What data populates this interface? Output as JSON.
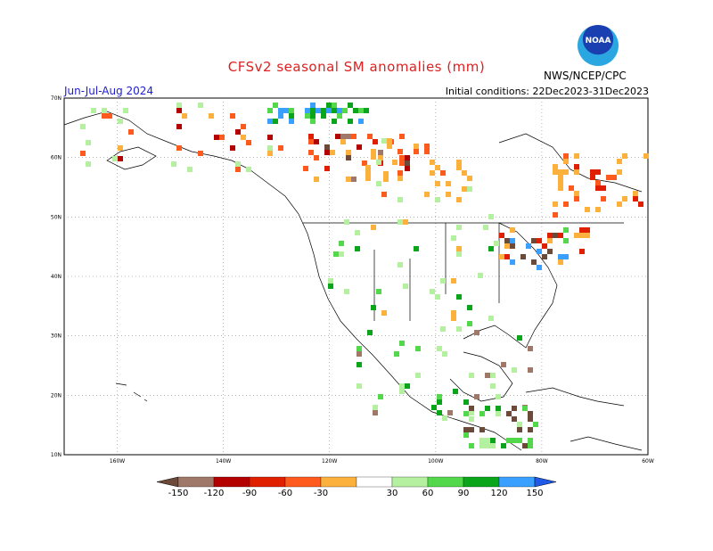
{
  "header": {
    "title": "CFSv2 seasonal SM anomalies (mm)",
    "period": "Jun-Jul-Aug 2024",
    "initial_conditions": "Initial conditions: 22Dec2023-31Dec2023",
    "org": "NWS/NCEP/CPC",
    "logo_text": "NOAA"
  },
  "map": {
    "lat_labels": [
      "70N",
      "60N",
      "50N",
      "40N",
      "30N",
      "20N",
      "10N"
    ],
    "lon_labels": [
      "160W",
      "140W",
      "120W",
      "100W",
      "80W",
      "60W"
    ],
    "lat_values": [
      70,
      60,
      50,
      40,
      30,
      20,
      10
    ],
    "lon_values": [
      -160,
      -140,
      -120,
      -100,
      -80,
      -60
    ]
  },
  "colorbar": {
    "labels": [
      "-150",
      "-120",
      "-90",
      "-60",
      "-30",
      "30",
      "60",
      "90",
      "120",
      "150"
    ],
    "colors": [
      "#6b4a3a",
      "#a0786a",
      "#b30000",
      "#e01e00",
      "#ff5a1e",
      "#fbb13c",
      "#ffffff",
      "#b4f0a0",
      "#52d84a",
      "#0ba51c",
      "#3aa0ff",
      "#1e5ae6"
    ]
  }
}
